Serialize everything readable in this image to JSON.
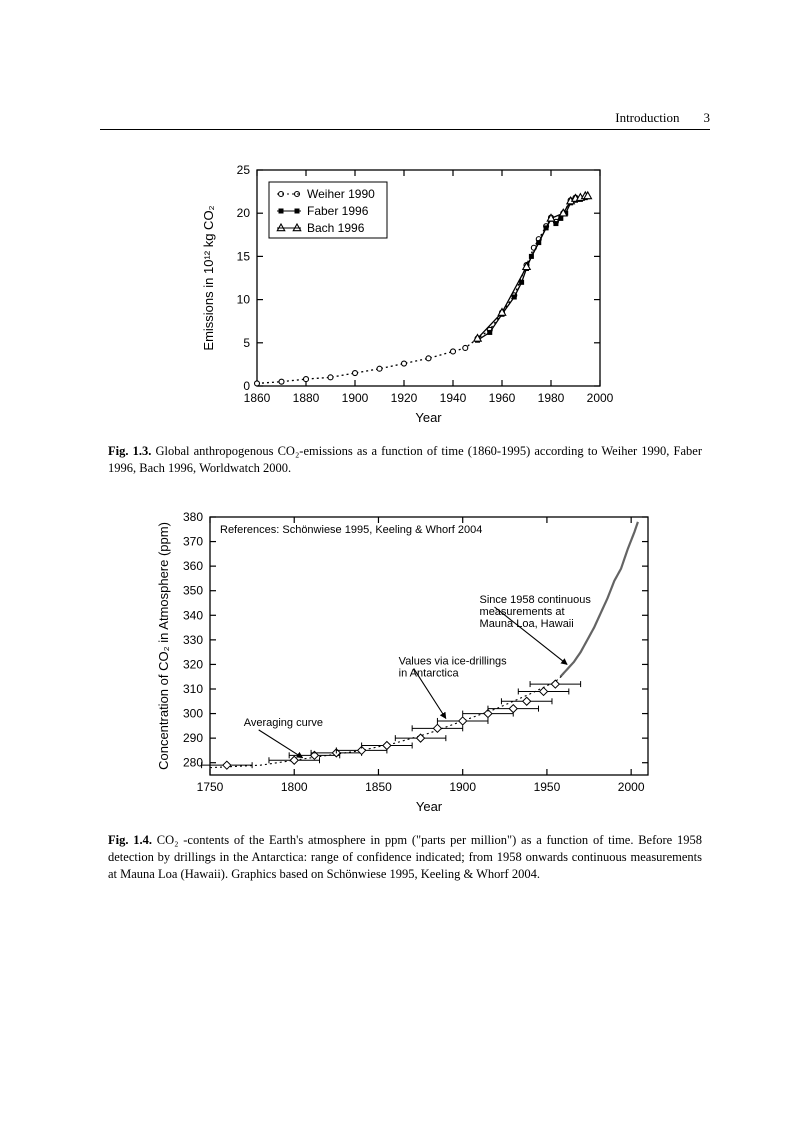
{
  "header": {
    "title": "Introduction",
    "pagenum": "3"
  },
  "chart1": {
    "type": "line",
    "xlabel": "Year",
    "ylabel": "Emissions in 10¹² kg CO₂",
    "xlim": [
      1860,
      2000
    ],
    "xtick_step": 20,
    "ylim": [
      0,
      25
    ],
    "ytick_step": 5,
    "background_color": "#ffffff",
    "axis_color": "#000000",
    "grid": false,
    "font_family": "Arial",
    "label_fontsize": 13,
    "tick_fontsize": 12,
    "line_width": 1.3,
    "series": {
      "weiher1990": {
        "label": "Weiher 1990",
        "marker": "circle-open",
        "marker_size": 5,
        "line_style": "dot",
        "color": "#000000",
        "data": [
          [
            1860,
            0.3
          ],
          [
            1870,
            0.5
          ],
          [
            1880,
            0.8
          ],
          [
            1890,
            1.0
          ],
          [
            1900,
            1.5
          ],
          [
            1910,
            2.0
          ],
          [
            1920,
            2.6
          ],
          [
            1930,
            3.2
          ],
          [
            1940,
            4.0
          ],
          [
            1945,
            4.4
          ],
          [
            1950,
            5.5
          ],
          [
            1955,
            6.5
          ],
          [
            1960,
            8.5
          ],
          [
            1965,
            10.5
          ],
          [
            1970,
            14.0
          ],
          [
            1973,
            16.0
          ],
          [
            1975,
            17.0
          ],
          [
            1978,
            18.5
          ],
          [
            1980,
            19.5
          ],
          [
            1982,
            19.0
          ],
          [
            1985,
            20.0
          ],
          [
            1988,
            21.5
          ],
          [
            1990,
            21.8
          ]
        ]
      },
      "faber1996": {
        "label": "Faber 1996",
        "marker": "square-filled",
        "marker_size": 5,
        "line_style": "solid",
        "color": "#000000",
        "data": [
          [
            1950,
            5.3
          ],
          [
            1955,
            6.2
          ],
          [
            1960,
            8.3
          ],
          [
            1965,
            10.3
          ],
          [
            1968,
            12.0
          ],
          [
            1970,
            13.6
          ],
          [
            1972,
            15.0
          ],
          [
            1975,
            16.6
          ],
          [
            1978,
            18.3
          ],
          [
            1980,
            19.3
          ],
          [
            1982,
            18.8
          ],
          [
            1984,
            19.4
          ],
          [
            1986,
            20.0
          ],
          [
            1988,
            21.2
          ],
          [
            1990,
            21.5
          ],
          [
            1992,
            21.6
          ],
          [
            1994,
            21.8
          ]
        ]
      },
      "bach1996": {
        "label": "Bach 1996",
        "marker": "triangle-open",
        "marker_size": 6,
        "line_style": "solid",
        "color": "#000000",
        "data": [
          [
            1950,
            5.5
          ],
          [
            1960,
            8.5
          ],
          [
            1970,
            13.8
          ],
          [
            1980,
            19.4
          ],
          [
            1985,
            20.0
          ],
          [
            1988,
            21.4
          ],
          [
            1990,
            21.7
          ],
          [
            1992,
            21.8
          ],
          [
            1994,
            22.0
          ],
          [
            1995,
            22.0
          ]
        ]
      }
    }
  },
  "caption1": {
    "lead": "Fig. 1.3.",
    "text": " Global anthropogenous CO₂-emissions as a function of time (1860-1995) according to Weiher 1990, Faber 1996, Bach 1996, Worldwatch 2000."
  },
  "chart2": {
    "type": "line",
    "xlabel": "Year",
    "ylabel": "Concentration of CO₂ in Atmosphere (ppm)",
    "xlim": [
      1750,
      2010
    ],
    "xtick_step": 50,
    "ylim": [
      275,
      380
    ],
    "ytick_step": 10,
    "ytick_start": 280,
    "background_color": "#ffffff",
    "axis_color": "#000000",
    "grid": false,
    "font_family": "Arial",
    "label_fontsize": 13,
    "tick_fontsize": 12,
    "topnote": "References: Schönwiese 1995, Keeling & Whorf 2004",
    "ice_points": {
      "marker": "diamond-open",
      "color": "#000000",
      "errorbar_halfwidth_yr": 15,
      "data": [
        [
          1760,
          279
        ],
        [
          1800,
          281
        ],
        [
          1812,
          283
        ],
        [
          1825,
          284
        ],
        [
          1840,
          285
        ],
        [
          1855,
          287
        ],
        [
          1875,
          290
        ],
        [
          1885,
          294
        ],
        [
          1900,
          297
        ],
        [
          1915,
          300
        ],
        [
          1930,
          302
        ],
        [
          1938,
          305
        ],
        [
          1948,
          309
        ],
        [
          1955,
          312
        ]
      ]
    },
    "average_curve": {
      "line_style": "dot",
      "color": "#000000",
      "data": [
        [
          1750,
          278
        ],
        [
          1780,
          279
        ],
        [
          1800,
          281
        ],
        [
          1820,
          283
        ],
        [
          1840,
          285
        ],
        [
          1860,
          288
        ],
        [
          1880,
          292
        ],
        [
          1900,
          297
        ],
        [
          1920,
          302
        ],
        [
          1940,
          308
        ],
        [
          1955,
          313
        ],
        [
          1960,
          316
        ]
      ]
    },
    "mauna_loa": {
      "line_style": "solid",
      "color": "#303030",
      "wiggle_amp_ppm": 2.5,
      "line_width": 2.2,
      "data": [
        [
          1958,
          315
        ],
        [
          1962,
          318
        ],
        [
          1966,
          321
        ],
        [
          1970,
          325
        ],
        [
          1974,
          330
        ],
        [
          1978,
          335
        ],
        [
          1982,
          341
        ],
        [
          1986,
          347
        ],
        [
          1990,
          354
        ],
        [
          1994,
          359
        ],
        [
          1998,
          367
        ],
        [
          2002,
          374
        ],
        [
          2004,
          378
        ]
      ]
    },
    "annotations": [
      {
        "key": "avg",
        "text": "Averaging curve",
        "tx": 1770,
        "ty": 295,
        "ax": 1805,
        "ay": 282
      },
      {
        "key": "ice",
        "text": "Values via ice-drillings\nin Antarctica",
        "tx": 1862,
        "ty": 320,
        "ax": 1890,
        "ay": 298
      },
      {
        "key": "ml",
        "text": "Since 1958 continuous\nmeasurements at\nMauna Loa, Hawaii",
        "tx": 1910,
        "ty": 345,
        "ax": 1962,
        "ay": 320
      }
    ]
  },
  "caption2": {
    "lead": "Fig. 1.4.",
    "text": " CO₂ -contents of the Earth's atmosphere in ppm (\"parts per million\") as a function of time. Before 1958 detection by drillings in the Antarctica: range of confidence indicated; from 1958 onwards continuous measurements at Mauna Loa (Hawaii). Graphics based on Schönwiese 1995, Keeling & Whorf 2004."
  }
}
